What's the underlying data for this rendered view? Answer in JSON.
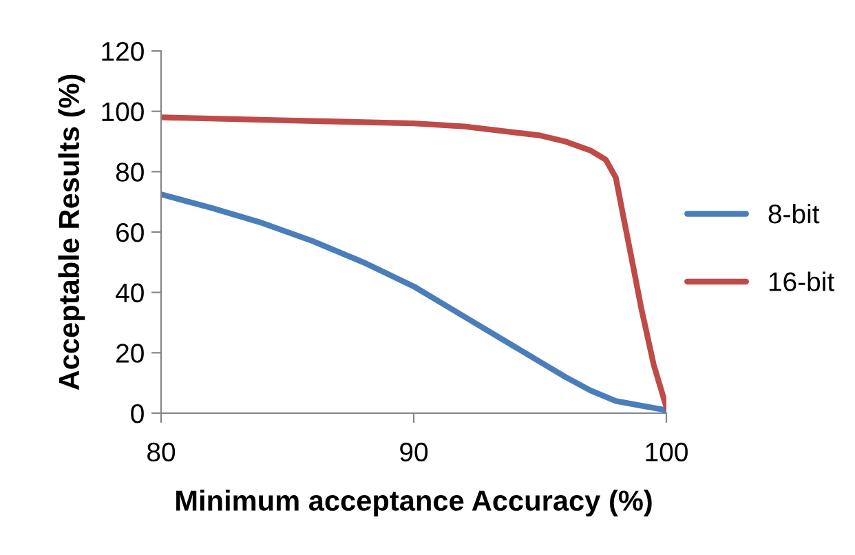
{
  "chart_data": {
    "type": "line",
    "xlabel": "Minimum acceptance Accuracy (%)",
    "ylabel": "Acceptable Results (%)",
    "xlim": [
      80,
      100
    ],
    "xticks": [
      80,
      90,
      100
    ],
    "ylim": [
      0,
      120
    ],
    "yticks": [
      0,
      20,
      40,
      60,
      80,
      100,
      120
    ],
    "grid": false,
    "legend": "right",
    "marker": "none",
    "line_style": "solid",
    "series": [
      {
        "name": "8-bit",
        "color": "#4a7ebb",
        "x": [
          80,
          82,
          84,
          86,
          88,
          90,
          92,
          94,
          95,
          96,
          97,
          98,
          99,
          100
        ],
        "values": [
          72.5,
          68,
          63,
          57,
          50,
          42,
          32,
          22,
          17,
          12,
          7.5,
          4,
          2.5,
          1
        ]
      },
      {
        "name": "16-bit",
        "color": "#be4b48",
        "x": [
          80,
          85,
          90,
          92,
          94,
          95,
          96,
          97,
          97.6,
          98,
          98.3,
          98.7,
          99,
          99.5,
          100
        ],
        "values": [
          98,
          97,
          96,
          95,
          93,
          92,
          90,
          87,
          84,
          78,
          65,
          48,
          35,
          16,
          2
        ]
      }
    ]
  }
}
